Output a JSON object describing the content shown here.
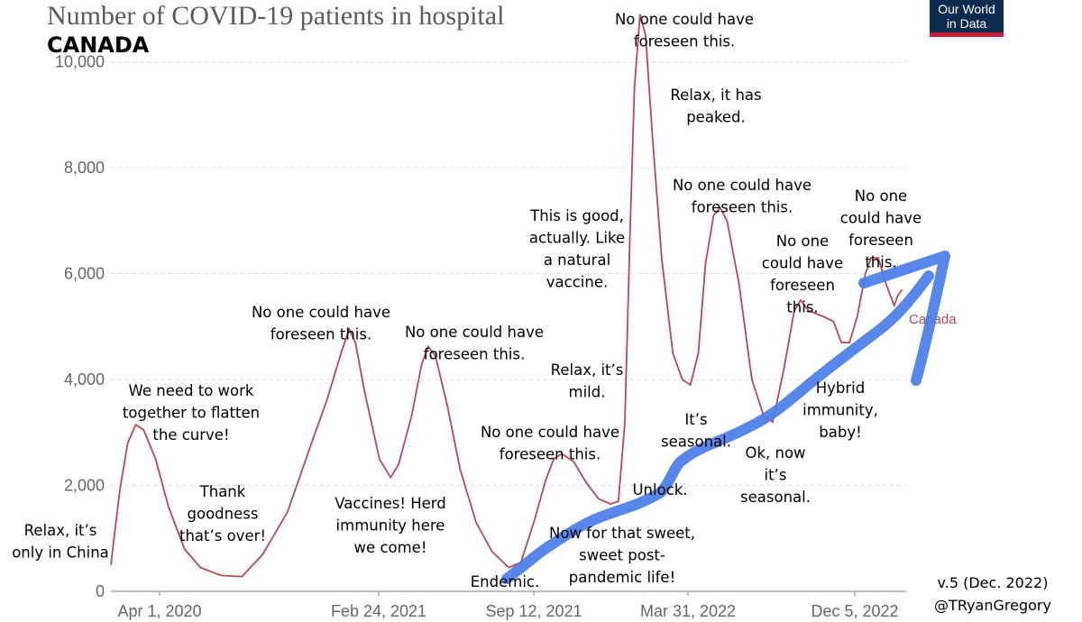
{
  "logo": {
    "line1": "Our World",
    "line2": "in Data"
  },
  "credit": {
    "version": "v.5 (Dec. 2022)",
    "author": "@TRyanGregory"
  },
  "colors": {
    "series": "#b5495b",
    "trend": "#4a7de8",
    "logo_bg": "#0d2b4e",
    "logo_accent": "#c4213b"
  },
  "chart_data": {
    "type": "line",
    "title": "Number of COVID-19 patients in hospital",
    "subtitle": "CANADA",
    "xlabel": "",
    "ylabel": "",
    "ylim": [
      0,
      11000
    ],
    "x_ticks": [
      "Apr 1, 2020",
      "Feb 24, 2021",
      "Sep 12, 2021",
      "Mar 31, 2022",
      "Dec 5, 2022"
    ],
    "y_ticks": [
      {
        "value": 0,
        "label": "0"
      },
      {
        "value": 2000,
        "label": "2,000"
      },
      {
        "value": 4000,
        "label": "4,000"
      },
      {
        "value": 6000,
        "label": "6,000"
      },
      {
        "value": 8000,
        "label": "8,000"
      },
      {
        "value": 10000,
        "label": "10,000"
      }
    ],
    "x_start": "2020-03-25",
    "x_end": "2022-12-15",
    "series": [
      {
        "name": "Canada",
        "points": [
          [
            "2020-03-25",
            500
          ],
          [
            "2020-04-05",
            1900
          ],
          [
            "2020-04-15",
            2800
          ],
          [
            "2020-04-25",
            3150
          ],
          [
            "2020-05-05",
            3050
          ],
          [
            "2020-05-20",
            2500
          ],
          [
            "2020-06-05",
            1600
          ],
          [
            "2020-06-25",
            800
          ],
          [
            "2020-07-15",
            450
          ],
          [
            "2020-08-10",
            300
          ],
          [
            "2020-09-05",
            280
          ],
          [
            "2020-10-01",
            700
          ],
          [
            "2020-11-01",
            1500
          ],
          [
            "2020-12-01",
            2800
          ],
          [
            "2020-12-20",
            3600
          ],
          [
            "2021-01-07",
            4500
          ],
          [
            "2021-01-17",
            4950
          ],
          [
            "2021-01-25",
            4700
          ],
          [
            "2021-02-05",
            3800
          ],
          [
            "2021-02-24",
            2500
          ],
          [
            "2021-03-10",
            2150
          ],
          [
            "2021-03-20",
            2400
          ],
          [
            "2021-04-05",
            3300
          ],
          [
            "2021-04-18",
            4300
          ],
          [
            "2021-04-26",
            4620
          ],
          [
            "2021-05-05",
            4450
          ],
          [
            "2021-05-20",
            3500
          ],
          [
            "2021-06-05",
            2300
          ],
          [
            "2021-06-25",
            1300
          ],
          [
            "2021-07-15",
            750
          ],
          [
            "2021-08-05",
            450
          ],
          [
            "2021-08-20",
            550
          ],
          [
            "2021-09-05",
            1300
          ],
          [
            "2021-09-20",
            2100
          ],
          [
            "2021-09-30",
            2500
          ],
          [
            "2021-10-10",
            2600
          ],
          [
            "2021-10-25",
            2450
          ],
          [
            "2021-11-10",
            2050
          ],
          [
            "2021-11-25",
            1750
          ],
          [
            "2021-12-10",
            1650
          ],
          [
            "2021-12-20",
            1700
          ],
          [
            "2021-12-28",
            3200
          ],
          [
            "2022-01-03",
            6500
          ],
          [
            "2022-01-09",
            9500
          ],
          [
            "2022-01-16",
            10900
          ],
          [
            "2022-01-23",
            10500
          ],
          [
            "2022-02-01",
            8500
          ],
          [
            "2022-02-12",
            6300
          ],
          [
            "2022-02-26",
            4500
          ],
          [
            "2022-03-10",
            4000
          ],
          [
            "2022-03-20",
            3900
          ],
          [
            "2022-03-30",
            4500
          ],
          [
            "2022-04-08",
            6200
          ],
          [
            "2022-04-18",
            7100
          ],
          [
            "2022-04-26",
            7250
          ],
          [
            "2022-05-05",
            7000
          ],
          [
            "2022-05-20",
            5800
          ],
          [
            "2022-06-05",
            4000
          ],
          [
            "2022-06-20",
            3300
          ],
          [
            "2022-07-01",
            3200
          ],
          [
            "2022-07-15",
            4200
          ],
          [
            "2022-07-28",
            5300
          ],
          [
            "2022-08-05",
            5500
          ],
          [
            "2022-08-15",
            5300
          ],
          [
            "2022-09-01",
            5200
          ],
          [
            "2022-09-15",
            5100
          ],
          [
            "2022-09-25",
            4700
          ],
          [
            "2022-10-05",
            4700
          ],
          [
            "2022-10-15",
            5200
          ],
          [
            "2022-10-25",
            6000
          ],
          [
            "2022-11-01",
            6300
          ],
          [
            "2022-11-10",
            6300
          ],
          [
            "2022-11-20",
            5800
          ],
          [
            "2022-11-30",
            5400
          ],
          [
            "2022-12-05",
            5600
          ],
          [
            "2022-12-10",
            5700
          ]
        ]
      }
    ],
    "annotations": [
      {
        "id": "a01",
        "lines": [
          "Relax, it’s",
          "only in China"
        ]
      },
      {
        "id": "a02",
        "lines": [
          "We need to work",
          "together to flatten",
          "the curve!"
        ]
      },
      {
        "id": "a03",
        "lines": [
          "Thank",
          "goodness",
          "that’s over!"
        ]
      },
      {
        "id": "a04",
        "lines": [
          "No one could have",
          "foreseen this."
        ]
      },
      {
        "id": "a05",
        "lines": [
          "No one could have",
          "foreseen this."
        ]
      },
      {
        "id": "a06",
        "lines": [
          "Vaccines! Herd",
          "immunity here",
          "we come!"
        ]
      },
      {
        "id": "a07",
        "lines": [
          "Endemic."
        ]
      },
      {
        "id": "a08",
        "lines": [
          "No one could have",
          "foreseen this."
        ]
      },
      {
        "id": "a09",
        "lines": [
          "Relax, it’s",
          "mild."
        ]
      },
      {
        "id": "a10",
        "lines": [
          "This is good,",
          "actually. Like",
          "a natural",
          "vaccine."
        ]
      },
      {
        "id": "a11",
        "lines": [
          "Now for that sweet,",
          "sweet post-",
          "pandemic life!"
        ]
      },
      {
        "id": "a12",
        "lines": [
          "Unlock."
        ]
      },
      {
        "id": "a13",
        "lines": [
          "No one could have",
          "foreseen this."
        ]
      },
      {
        "id": "a14",
        "lines": [
          "Relax, it has",
          "peaked."
        ]
      },
      {
        "id": "a15",
        "lines": [
          "No one could have",
          "foreseen this."
        ]
      },
      {
        "id": "a16",
        "lines": [
          "It’s",
          "seasonal."
        ]
      },
      {
        "id": "a17",
        "lines": [
          "Ok, now",
          "it’s",
          "seasonal."
        ]
      },
      {
        "id": "a18",
        "lines": [
          "No one",
          "could have",
          "foreseen",
          "this."
        ]
      },
      {
        "id": "a19",
        "lines": [
          "Hybrid",
          "immunity,",
          "baby!"
        ]
      },
      {
        "id": "a20",
        "lines": [
          "No one",
          "could have",
          "foreseen",
          "this."
        ]
      }
    ]
  }
}
